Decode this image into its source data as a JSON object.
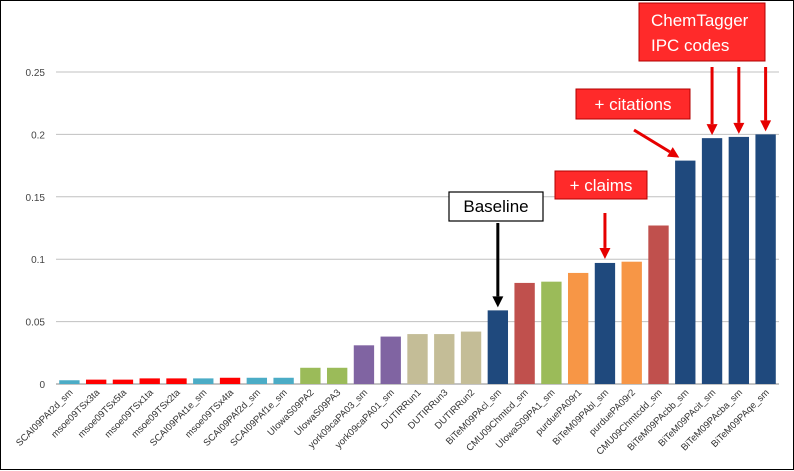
{
  "chart_data": {
    "type": "bar",
    "categories": [
      "SCAI09PAt2d_sm",
      "msoe09TSx3ta",
      "msoe09TSx5ta",
      "msoe09TSx1ta",
      "msoe09TSx2ta",
      "SCAI09PAt1e_sm",
      "msoe09TSx4ta",
      "SCAI09PAf2d_sm",
      "SCAI09PAf1e_sm",
      "UIowaS09PA2",
      "UIowaS09PA3",
      "york09caPA03_sm",
      "york09caPA01_sm",
      "DUTIRRun1",
      "DUTIRRun3",
      "DUTIRRun2",
      "BiTeM09PAcl_sm",
      "CMU09Chmtcd_sm",
      "UIowaS09PA1_sm",
      "purduePA09r1",
      "BiTeM09PAbl_sm",
      "purduePA09r2",
      "CMU09Chmtcdd_sm",
      "BiTeM09PAcbb_sm",
      "BiTeM09PAcit_sm",
      "BiTeM09PAcba_sm",
      "BiTeM09PAqe_sm"
    ],
    "values": [
      0.003,
      0.0035,
      0.0035,
      0.0045,
      0.0045,
      0.0045,
      0.005,
      0.005,
      0.005,
      0.013,
      0.013,
      0.031,
      0.038,
      0.04,
      0.04,
      0.042,
      0.059,
      0.081,
      0.082,
      0.089,
      0.097,
      0.098,
      0.127,
      0.179,
      0.197,
      0.198,
      0.2
    ],
    "bar_colors": [
      "#4bacc6",
      "#ff0000",
      "#ff0000",
      "#ff0000",
      "#ff0000",
      "#4bacc6",
      "#ff0000",
      "#4bacc6",
      "#4bacc6",
      "#9bbb59",
      "#9bbb59",
      "#8064a2",
      "#8064a2",
      "#c4bd97",
      "#c4bd97",
      "#c4bd97",
      "#1f497d",
      "#c0504d",
      "#9bbb59",
      "#f79646",
      "#1f497d",
      "#f79646",
      "#c0504d",
      "#1f497d",
      "#1f497d",
      "#1f497d",
      "#1f497d"
    ],
    "yticks": [
      "0",
      "0.05",
      "0.1",
      "0.15",
      "0.2",
      "0.25"
    ],
    "ylim": [
      0,
      0.25
    ],
    "grid": true,
    "title": "",
    "xlabel": "",
    "ylabel": ""
  },
  "annotations": {
    "baseline": "Baseline",
    "claims": "+ claims",
    "citations": "+ citations",
    "chemtagger_line1": "ChemTagger",
    "chemtagger_line2": "IPC codes"
  },
  "colors": {
    "annotation_fill": "#ff2a2a",
    "arrow_red": "#e60000",
    "arrow_black": "#000000",
    "grid": "#c0c0c0"
  }
}
